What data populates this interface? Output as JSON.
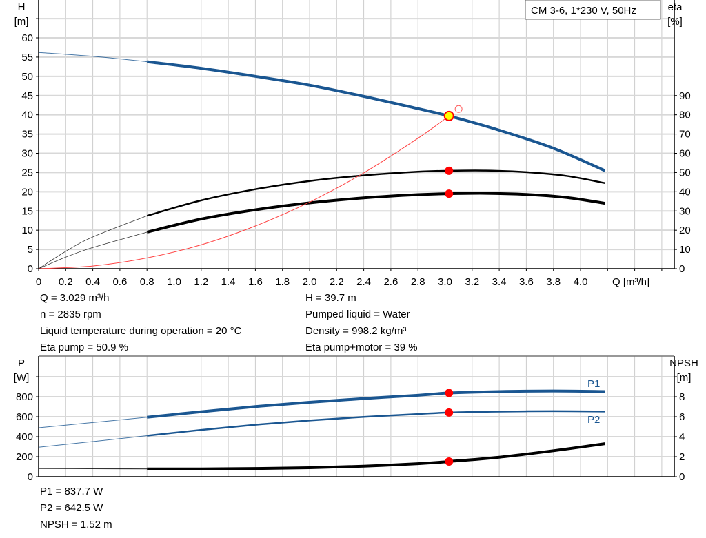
{
  "legend_box": "CM 3-6, 1*230 V, 50Hz",
  "colors": {
    "head": "#1a5691",
    "power": "#1a5691",
    "efficiency": "#000000",
    "npsh": "#000000",
    "system": "#ff4040",
    "duty_point": "#ff0000",
    "duty_fill": "#ffff00",
    "grid": "#cccccc"
  },
  "info_top_left": [
    "Q = 3.029 m³/h",
    "n = 2835 rpm",
    "Liquid temperature during operation = 20 °C",
    "Eta pump = 50.9 %"
  ],
  "info_top_right": [
    "H = 39.7 m",
    "Pumped liquid = Water",
    "Density = 998.2 kg/m³",
    "Eta pump+motor = 39 %"
  ],
  "info_bottom": [
    "P1 = 837.7 W",
    "P2 = 642.5 W",
    "NPSH = 1.52 m"
  ],
  "chart_data": [
    {
      "type": "line",
      "xlabel": "Q [m³/h]",
      "ylabel": [
        "H",
        "[m]"
      ],
      "y2label": [
        "eta",
        "[%]"
      ],
      "xlim": [
        0,
        4.6
      ],
      "ylim": [
        0,
        65
      ],
      "y2lim": [
        0,
        130
      ],
      "xticks": [
        "0",
        "0.2",
        "0.4",
        "0.6",
        "0.8",
        "1.0",
        "1.2",
        "1.4",
        "1.6",
        "1.8",
        "2.0",
        "2.2",
        "2.4",
        "2.6",
        "2.8",
        "3.0",
        "3.2",
        "3.4",
        "3.6",
        "3.8",
        "4.0"
      ],
      "yticks": [
        0,
        5,
        10,
        15,
        20,
        25,
        30,
        35,
        40,
        45,
        50,
        55,
        60
      ],
      "y2ticks": [
        0,
        10,
        20,
        30,
        40,
        50,
        60,
        70,
        80,
        90
      ],
      "grid": true,
      "series": [
        {
          "key": "head",
          "axis": "left",
          "points": [
            [
              0,
              56.2
            ],
            [
              0.4,
              55.2
            ],
            [
              0.8,
              53.8
            ],
            [
              1.2,
              52.1
            ],
            [
              1.6,
              50.0
            ],
            [
              2.0,
              47.7
            ],
            [
              2.4,
              44.8
            ],
            [
              2.8,
              41.6
            ],
            [
              3.029,
              39.7
            ],
            [
              3.4,
              36.0
            ],
            [
              3.8,
              31.3
            ],
            [
              4.18,
              25.5
            ]
          ]
        },
        {
          "key": "eta_pump",
          "axis": "right",
          "points": [
            [
              0,
              0
            ],
            [
              0.2,
              9
            ],
            [
              0.4,
              16.5
            ],
            [
              0.8,
              27.5
            ],
            [
              1.2,
              35.5
            ],
            [
              1.6,
              41.3
            ],
            [
              2.0,
              45.6
            ],
            [
              2.4,
              48.5
            ],
            [
              2.8,
              50.4
            ],
            [
              3.029,
              50.9
            ],
            [
              3.3,
              51
            ],
            [
              3.6,
              50.2
            ],
            [
              3.9,
              48.2
            ],
            [
              4.18,
              44.5
            ]
          ]
        },
        {
          "key": "eta_total",
          "axis": "right",
          "points": [
            [
              0,
              0
            ],
            [
              0.2,
              6
            ],
            [
              0.4,
              11
            ],
            [
              0.8,
              19
            ],
            [
              1.2,
              25.8
            ],
            [
              1.6,
              30.6
            ],
            [
              2.0,
              34.2
            ],
            [
              2.4,
              36.8
            ],
            [
              2.8,
              38.5
            ],
            [
              3.029,
              39
            ],
            [
              3.3,
              39.2
            ],
            [
              3.6,
              38.6
            ],
            [
              3.9,
              37
            ],
            [
              4.18,
              34
            ]
          ]
        },
        {
          "key": "system",
          "axis": "left",
          "points": [
            [
              0,
              0
            ],
            [
              0.4,
              0.7
            ],
            [
              0.8,
              2.8
            ],
            [
              1.2,
              6.2
            ],
            [
              1.6,
              11.1
            ],
            [
              2.0,
              17.3
            ],
            [
              2.4,
              24.9
            ],
            [
              2.8,
              33.9
            ],
            [
              3.029,
              39.7
            ]
          ]
        }
      ],
      "duty_point": {
        "q": 3.029,
        "h": 39.7,
        "eta_pump": 50.9,
        "eta_total": 39
      },
      "open_marker": {
        "q": 3.1,
        "h": 41.5
      }
    },
    {
      "type": "line",
      "ylabel": [
        "P",
        "[W]"
      ],
      "y2label": [
        "NPSH",
        "[m]"
      ],
      "xlim": [
        0,
        4.6
      ],
      "ylim": [
        0,
        1000
      ],
      "y2lim": [
        0,
        10
      ],
      "yticks": [
        0,
        200,
        400,
        600,
        800
      ],
      "y2ticks": [
        0,
        2,
        4,
        6,
        8
      ],
      "grid": true,
      "series": [
        {
          "key": "p1",
          "name": "P1",
          "axis": "left",
          "points": [
            [
              0,
              490
            ],
            [
              0.4,
              542
            ],
            [
              0.8,
              595
            ],
            [
              1.2,
              650
            ],
            [
              1.6,
              702
            ],
            [
              2.0,
              745
            ],
            [
              2.4,
              782
            ],
            [
              2.8,
              815
            ],
            [
              3.029,
              837.7
            ],
            [
              3.4,
              852
            ],
            [
              3.8,
              858
            ],
            [
              4.18,
              852
            ]
          ]
        },
        {
          "key": "p2",
          "name": "P2",
          "axis": "left",
          "points": [
            [
              0,
              295
            ],
            [
              0.4,
              352
            ],
            [
              0.8,
              410
            ],
            [
              1.2,
              468
            ],
            [
              1.6,
              520
            ],
            [
              2.0,
              563
            ],
            [
              2.4,
              598
            ],
            [
              2.8,
              627
            ],
            [
              3.029,
              642.5
            ],
            [
              3.4,
              652
            ],
            [
              3.8,
              656
            ],
            [
              4.18,
              653
            ]
          ]
        },
        {
          "key": "npsh",
          "axis": "right",
          "points": [
            [
              0,
              0.82
            ],
            [
              0.4,
              0.8
            ],
            [
              0.8,
              0.78
            ],
            [
              1.2,
              0.78
            ],
            [
              1.6,
              0.82
            ],
            [
              2.0,
              0.9
            ],
            [
              2.4,
              1.05
            ],
            [
              2.8,
              1.3
            ],
            [
              3.029,
              1.52
            ],
            [
              3.4,
              1.95
            ],
            [
              3.8,
              2.6
            ],
            [
              4.18,
              3.3
            ]
          ]
        }
      ],
      "duty_point": {
        "q": 3.029,
        "p1": 837.7,
        "p2": 642.5,
        "npsh": 1.52
      }
    }
  ]
}
